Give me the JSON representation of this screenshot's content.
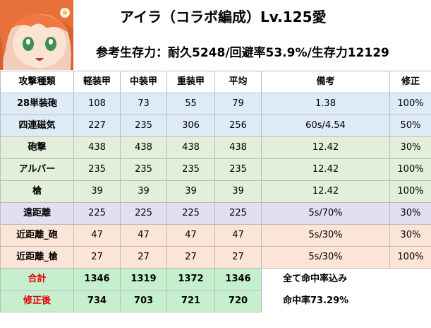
{
  "header": {
    "title": "アイラ（コラボ編成）Lv.125愛",
    "subtitle": "参考生存力：耐久5248/回避率53.9%/生存力12129"
  },
  "table": {
    "columns": [
      "攻撃種類",
      "軽装甲",
      "中装甲",
      "重装甲",
      "平均",
      "備考",
      "修正"
    ],
    "rows": [
      {
        "name": "28単装砲",
        "light": "108",
        "medium": "73",
        "heavy": "55",
        "avg": "79",
        "note": "1.38",
        "mod": "100%",
        "color": "#ddebf7"
      },
      {
        "name": "四連磁気",
        "light": "227",
        "medium": "235",
        "heavy": "306",
        "avg": "256",
        "note": "60s/4.54",
        "mod": "50%",
        "color": "#ddebf7"
      },
      {
        "name": "砲撃",
        "light": "438",
        "medium": "438",
        "heavy": "438",
        "avg": "438",
        "note": "12.42",
        "mod": "30%",
        "color": "#e2efda"
      },
      {
        "name": "アルバー",
        "light": "235",
        "medium": "235",
        "heavy": "235",
        "avg": "235",
        "note": "12.42",
        "mod": "100%",
        "color": "#e2efda"
      },
      {
        "name": "槍",
        "light": "39",
        "medium": "39",
        "heavy": "39",
        "avg": "39",
        "note": "12.42",
        "mod": "100%",
        "color": "#e2efda"
      },
      {
        "name": "遠距離",
        "light": "225",
        "medium": "225",
        "heavy": "225",
        "avg": "225",
        "note": "5s/70%",
        "mod": "30%",
        "color": "#e4dff0"
      },
      {
        "name": "近距離_砲",
        "light": "47",
        "medium": "47",
        "heavy": "47",
        "avg": "47",
        "note": "5s/30%",
        "mod": "30%",
        "color": "#fce4d6"
      },
      {
        "name": "近距離_槍",
        "light": "27",
        "medium": "27",
        "heavy": "27",
        "avg": "27",
        "note": "5s/30%",
        "mod": "100%",
        "color": "#fce4d6"
      }
    ],
    "total": {
      "label": "合計",
      "light": "1346",
      "medium": "1319",
      "heavy": "1372",
      "avg": "1346",
      "note": "全て命中率込み"
    },
    "corrected": {
      "label": "修正後",
      "light": "734",
      "medium": "703",
      "heavy": "721",
      "avg": "720",
      "note": "命中率73.29%"
    }
  }
}
